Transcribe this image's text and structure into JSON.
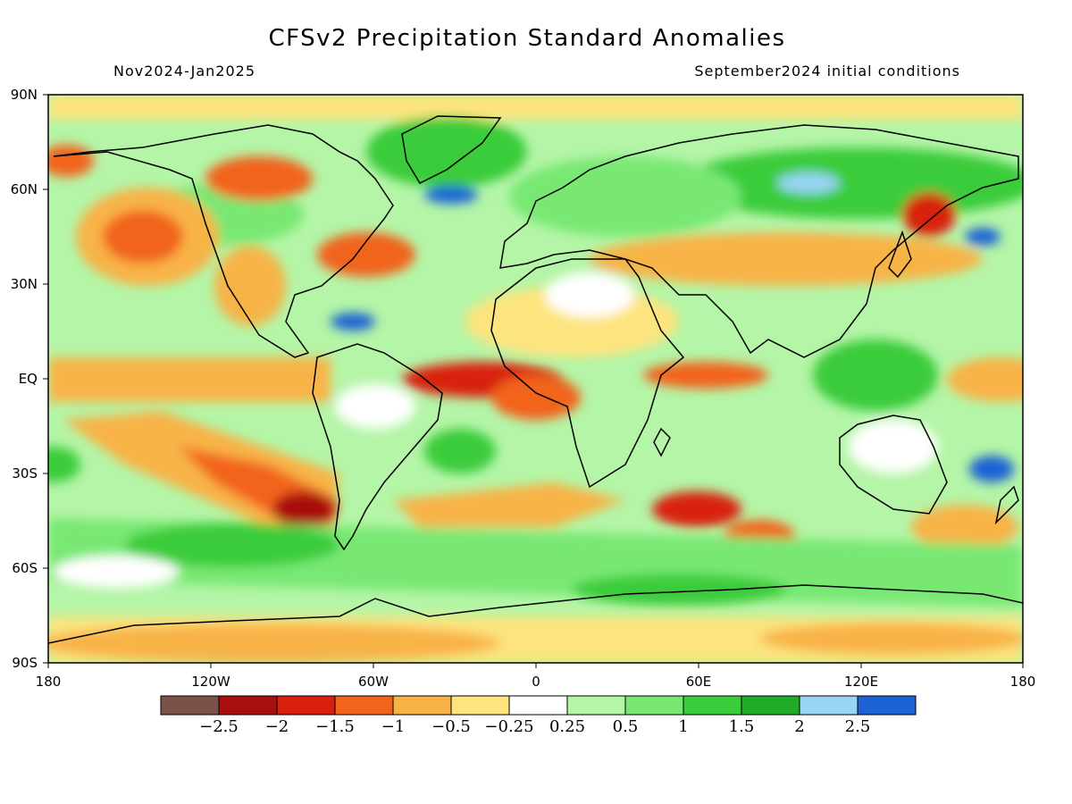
{
  "header": {
    "title": "CFSv2 Precipitation Standard Anomalies",
    "period": "Nov2024-Jan2025",
    "initial_conditions": "September2024 initial conditions"
  },
  "axes": {
    "lat_labels": [
      "90N",
      "60N",
      "30N",
      "EQ",
      "30S",
      "60S",
      "90S"
    ],
    "lon_labels": [
      "180",
      "120W",
      "60W",
      "0",
      "60E",
      "120E",
      "180"
    ]
  },
  "colorbar": {
    "colors": [
      "#7a5248",
      "#a80f0f",
      "#d9200e",
      "#f2641c",
      "#f8b347",
      "#fde47e",
      "#ffffff",
      "#b4f5a7",
      "#78e873",
      "#3bcc3b",
      "#1faa27",
      "#97d4f5",
      "#1d62d5"
    ],
    "labels": [
      "-2.5",
      "-2",
      "-1.5",
      "-1",
      "-0.5",
      "-0.25",
      "0.25",
      "0.5",
      "1",
      "1.5",
      "2",
      "2.5"
    ]
  },
  "style": {
    "coastline": "#000000",
    "ocean_base": "#ffffff",
    "dry_orange": "#f8b347",
    "wet_green": "#78e873"
  }
}
